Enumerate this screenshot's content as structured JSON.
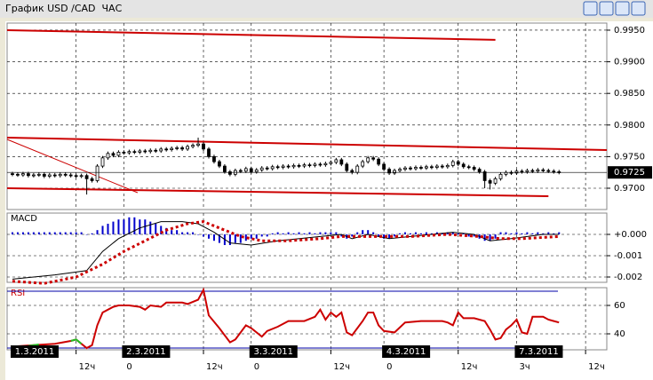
{
  "window": {
    "title": "График USD /CAD  ЧАС"
  },
  "chart_data": [
    {
      "type": "candlestick",
      "xlim": [
        -1,
        112
      ],
      "ylim": [
        0.96663,
        0.99612
      ],
      "grid": true,
      "yticks": [
        {
          "value": 0.995,
          "label": "0.9950"
        },
        {
          "value": 0.99,
          "label": "0.9900"
        },
        {
          "value": 0.985,
          "label": "0.9850"
        },
        {
          "value": 0.98,
          "label": "0.9800"
        },
        {
          "value": 0.975,
          "label": "0.9750"
        },
        {
          "value": 0.97,
          "label": "0.9700"
        }
      ],
      "last": {
        "value": 0.9725,
        "label": "0.9725"
      },
      "open": [
        0.9723,
        0.9722,
        0.9721,
        0.9723,
        0.972,
        0.9721,
        0.9722,
        0.9719,
        0.9721,
        0.972,
        0.9722,
        0.9721,
        0.972,
        0.9719,
        0.972,
        0.9715,
        0.9712,
        0.9735,
        0.9748,
        0.9755,
        0.9752,
        0.9757,
        0.9756,
        0.9758,
        0.9757,
        0.9759,
        0.9758,
        0.976,
        0.9759,
        0.9762,
        0.9761,
        0.9763,
        0.9764,
        0.9762,
        0.9766,
        0.9768,
        0.977,
        0.9762,
        0.975,
        0.9742,
        0.9735,
        0.9726,
        0.9722,
        0.9728,
        0.9727,
        0.9731,
        0.9726,
        0.9729,
        0.9732,
        0.9731,
        0.9734,
        0.9733,
        0.9735,
        0.9734,
        0.9736,
        0.9735,
        0.9737,
        0.9736,
        0.9738,
        0.9737,
        0.9739,
        0.9741,
        0.9745,
        0.9738,
        0.9728,
        0.9725,
        0.9735,
        0.9742,
        0.9748,
        0.9746,
        0.9738,
        0.973,
        0.9724,
        0.9728,
        0.973,
        0.9732,
        0.9731,
        0.9733,
        0.9732,
        0.9734,
        0.9733,
        0.9735,
        0.9734,
        0.9736,
        0.9742,
        0.9738,
        0.9734,
        0.9733,
        0.973,
        0.9726,
        0.9712,
        0.9708,
        0.9715,
        0.9722,
        0.9725,
        0.9724,
        0.9727,
        0.9726,
        0.9728,
        0.9727,
        0.9729,
        0.9728,
        0.9727,
        0.9726
      ],
      "high": [
        0.9726,
        0.9725,
        0.9726,
        0.9726,
        0.9724,
        0.9725,
        0.9725,
        0.9724,
        0.9724,
        0.9725,
        0.9725,
        0.9724,
        0.9723,
        0.9723,
        0.9723,
        0.9718,
        0.9738,
        0.9751,
        0.9758,
        0.9758,
        0.976,
        0.976,
        0.9761,
        0.9761,
        0.9762,
        0.9762,
        0.9763,
        0.9763,
        0.9765,
        0.9765,
        0.9766,
        0.9767,
        0.9767,
        0.9769,
        0.9771,
        0.978,
        0.9773,
        0.9765,
        0.9753,
        0.9745,
        0.9738,
        0.9729,
        0.9731,
        0.9731,
        0.9734,
        0.9734,
        0.9732,
        0.9735,
        0.9735,
        0.9737,
        0.9737,
        0.9738,
        0.9738,
        0.9739,
        0.9739,
        0.974,
        0.974,
        0.9741,
        0.9741,
        0.9742,
        0.9744,
        0.9748,
        0.9748,
        0.9741,
        0.9731,
        0.9738,
        0.9745,
        0.9751,
        0.9751,
        0.9749,
        0.9741,
        0.9733,
        0.9731,
        0.9733,
        0.9735,
        0.9735,
        0.9736,
        0.9736,
        0.9737,
        0.9737,
        0.9738,
        0.9738,
        0.9739,
        0.9745,
        0.9745,
        0.9741,
        0.9737,
        0.9736,
        0.9733,
        0.9729,
        0.9715,
        0.9718,
        0.9725,
        0.9728,
        0.9728,
        0.973,
        0.973,
        0.9731,
        0.9731,
        0.9732,
        0.9732,
        0.9731,
        0.973,
        0.9729
      ],
      "low": [
        0.9719,
        0.9718,
        0.9718,
        0.9717,
        0.9717,
        0.9718,
        0.9716,
        0.9716,
        0.9717,
        0.9717,
        0.9718,
        0.9717,
        0.9716,
        0.9716,
        0.969,
        0.9709,
        0.9709,
        0.9732,
        0.9745,
        0.9749,
        0.9749,
        0.9753,
        0.9753,
        0.9754,
        0.9754,
        0.9755,
        0.9755,
        0.9756,
        0.9756,
        0.9758,
        0.9758,
        0.976,
        0.9759,
        0.9759,
        0.9763,
        0.9765,
        0.9759,
        0.9747,
        0.9739,
        0.9732,
        0.9723,
        0.9719,
        0.9719,
        0.9724,
        0.9724,
        0.9723,
        0.9723,
        0.9726,
        0.9728,
        0.9728,
        0.973,
        0.973,
        0.9731,
        0.9731,
        0.9732,
        0.9732,
        0.9733,
        0.9733,
        0.9734,
        0.9734,
        0.9736,
        0.9738,
        0.9735,
        0.9725,
        0.9722,
        0.9722,
        0.9732,
        0.9739,
        0.9743,
        0.9735,
        0.9727,
        0.9721,
        0.9721,
        0.9725,
        0.9727,
        0.9728,
        0.9728,
        0.9729,
        0.9729,
        0.973,
        0.973,
        0.9731,
        0.9731,
        0.9733,
        0.9735,
        0.9731,
        0.973,
        0.9727,
        0.9723,
        0.97,
        0.9698,
        0.9705,
        0.9712,
        0.9719,
        0.9721,
        0.9721,
        0.9723,
        0.9723,
        0.9724,
        0.9724,
        0.9725,
        0.9724,
        0.9723,
        0.9722
      ],
      "close": [
        0.9722,
        0.9721,
        0.9723,
        0.972,
        0.9721,
        0.9722,
        0.9719,
        0.9721,
        0.972,
        0.9722,
        0.9721,
        0.972,
        0.9719,
        0.972,
        0.9715,
        0.9712,
        0.9735,
        0.9748,
        0.9755,
        0.9752,
        0.9757,
        0.9756,
        0.9758,
        0.9757,
        0.9759,
        0.9758,
        0.976,
        0.9759,
        0.9762,
        0.9761,
        0.9763,
        0.9764,
        0.9762,
        0.9766,
        0.9768,
        0.977,
        0.9762,
        0.975,
        0.9742,
        0.9735,
        0.9726,
        0.9722,
        0.9728,
        0.9727,
        0.9731,
        0.9726,
        0.9729,
        0.9732,
        0.9731,
        0.9734,
        0.9733,
        0.9735,
        0.9734,
        0.9736,
        0.9735,
        0.9737,
        0.9736,
        0.9738,
        0.9737,
        0.9739,
        0.9741,
        0.9745,
        0.9738,
        0.9728,
        0.9725,
        0.9735,
        0.9742,
        0.9748,
        0.9746,
        0.9738,
        0.973,
        0.9724,
        0.9728,
        0.973,
        0.9732,
        0.9731,
        0.9733,
        0.9732,
        0.9734,
        0.9733,
        0.9735,
        0.9734,
        0.9736,
        0.9742,
        0.9738,
        0.9734,
        0.9733,
        0.973,
        0.9726,
        0.9712,
        0.9708,
        0.9715,
        0.9722,
        0.9725,
        0.9724,
        0.9727,
        0.9726,
        0.9728,
        0.9727,
        0.9729,
        0.9728,
        0.9727,
        0.9726,
        0.9725
      ],
      "lines": [
        {
          "color": "#cc0000",
          "width": 2,
          "x": [
            -1,
            91
          ],
          "values": [
            0.995,
            0.99346
          ]
        },
        {
          "color": "#cc0000",
          "width": 2,
          "x": [
            -1,
            112
          ],
          "values": [
            0.97801,
            0.97604
          ]
        },
        {
          "color": "#cc0000",
          "width": 2,
          "x": [
            -1,
            101
          ],
          "values": [
            0.97,
            0.96874
          ]
        },
        {
          "color": "#cc0000",
          "width": 1,
          "x": [
            -1,
            23.6
          ],
          "values": [
            0.97772,
            0.9693
          ]
        }
      ]
    },
    {
      "type": "macd",
      "title": "MACD",
      "xlim": [
        -1,
        112
      ],
      "ylim": [
        -0.00225,
        0.001
      ],
      "grid": true,
      "yticks": [
        {
          "value": 0,
          "label": "+0.000"
        },
        {
          "value": -0.001,
          "label": "-0.001"
        },
        {
          "value": -0.002,
          "label": "-0.002"
        }
      ],
      "bars": {
        "color": "#0000cc",
        "values": [
          0.0001,
          0.0001,
          0.0001,
          0.0001,
          0.0001,
          0.0001,
          0.0001,
          0.0001,
          0.0001,
          0.0001,
          0.0001,
          0.0001,
          0.0001,
          0.0001,
          0,
          5e-05,
          0.0002,
          0.0004,
          0.0005,
          0.0006,
          0.0007,
          0.0007,
          0.0008,
          0.0008,
          0.0007,
          0.0007,
          0.0006,
          0.0005,
          0.0004,
          0.0003,
          0.0002,
          0.0002,
          0.0001,
          0.0001,
          0.0001,
          0,
          -0.0001,
          -0.0002,
          -0.0003,
          -0.0004,
          -0.0005,
          -0.0005,
          -0.0004,
          -0.0004,
          -0.0003,
          -0.0002,
          -0.0002,
          -0.0001,
          -0.0001,
          5e-05,
          0.0001,
          5e-05,
          0.0001,
          5e-05,
          0.0001,
          5e-05,
          0.0001,
          5e-05,
          0.0001,
          0.0001,
          0.0001,
          0.0001,
          -0.0001,
          -0.0002,
          -0.0001,
          0.0001,
          0.0002,
          0.0002,
          0.0001,
          -0.0001,
          -0.0002,
          -0.0002,
          -0.0001,
          5e-05,
          0.0001,
          5e-05,
          0.0001,
          5e-05,
          0.0001,
          5e-05,
          0.0001,
          5e-05,
          0.0001,
          0.0001,
          5e-05,
          5e-05,
          -0.0001,
          -0.0001,
          -0.0002,
          -0.0003,
          -0.0003,
          -0.0002,
          0.0001,
          0.0001,
          5e-05,
          0.0001,
          5e-05,
          0.0001,
          5e-05,
          0.0001,
          5e-05,
          0.0001,
          5e-05,
          0.0001
        ]
      },
      "series": [
        {
          "color": "#000000",
          "style": "solid",
          "x": [
            0,
            8,
            14,
            17,
            20,
            24,
            28,
            32,
            35,
            38,
            41,
            45,
            50,
            58,
            62,
            64,
            67,
            71,
            75,
            83,
            87,
            90,
            94,
            100,
            103
          ],
          "values": [
            -0.0021,
            -0.0019,
            -0.0017,
            -0.0008,
            -0.0002,
            0.0003,
            0.0006,
            0.0006,
            0.0005,
            0.0001,
            -0.0004,
            -0.0005,
            -0.0003,
            -0.0001,
            0,
            -0.0002,
            0,
            -0.0002,
            -0.0001,
            0.0001,
            0,
            -0.0003,
            -0.0002,
            0,
            0
          ]
        },
        {
          "color": "#cc0000",
          "style": "dotted",
          "x": [
            0,
            6,
            12,
            17,
            21,
            25,
            29,
            33,
            36,
            39,
            43,
            47,
            52,
            58,
            62,
            66,
            70,
            75,
            82,
            88,
            92,
            96,
            103
          ],
          "values": [
            -0.0022,
            -0.0023,
            -0.002,
            -0.0014,
            -0.0008,
            -0.0003,
            0.0002,
            0.0005,
            0.0006,
            0.0003,
            -0.0001,
            -0.0003,
            -0.0003,
            -0.0002,
            -0.0001,
            -0.0001,
            -0.0001,
            -0.0001,
            0,
            -0.0001,
            -0.0002,
            -0.0002,
            -0.0001
          ]
        }
      ]
    },
    {
      "type": "line",
      "title": "RSI",
      "xlim": [
        -1,
        112
      ],
      "ylim": [
        28.75,
        72.5
      ],
      "grid": true,
      "yticks": [
        60,
        40
      ],
      "levels": [
        70,
        30
      ],
      "level_color": "#0000aa",
      "xticks": [
        {
          "value": 12,
          "label": "12ч"
        },
        {
          "value": 21,
          "label": "0"
        },
        {
          "value": 36,
          "label": "12ч"
        },
        {
          "value": 45,
          "label": "0"
        },
        {
          "value": 60,
          "label": "12ч"
        },
        {
          "value": 70,
          "label": "0"
        },
        {
          "value": 84,
          "label": "12ч"
        },
        {
          "value": 95,
          "label": "3ч"
        },
        {
          "value": 108,
          "label": "12ч"
        }
      ],
      "date_labels": [
        {
          "value": 0,
          "label": "1.3.2011"
        },
        {
          "value": 21,
          "label": "2.3.2011"
        },
        {
          "value": 45,
          "label": "3.3.2011"
        },
        {
          "value": 70,
          "label": "4.3.2011"
        },
        {
          "value": 95,
          "label": "7.3.2011"
        }
      ],
      "series": [
        {
          "color": "#cc0000",
          "x": [
            0,
            4,
            8,
            11,
            12,
            13,
            14,
            15,
            16,
            17,
            19,
            20,
            22,
            24,
            25,
            26,
            28,
            29,
            32,
            33,
            35,
            36,
            37,
            39,
            41,
            42,
            44,
            45,
            47,
            48,
            50,
            52,
            55,
            57,
            58,
            59,
            60,
            61,
            62,
            63,
            64,
            66,
            67,
            68,
            69,
            70,
            72,
            74,
            77,
            81,
            82,
            83,
            84,
            85,
            87,
            89,
            90,
            91,
            92,
            93,
            94,
            95,
            96,
            97,
            98,
            100,
            101,
            102,
            103
          ],
          "values": [
            31,
            32,
            33,
            35,
            36,
            33,
            30,
            32,
            46,
            55,
            59,
            60,
            60,
            59,
            57,
            60,
            59,
            62,
            62,
            61,
            64,
            71,
            53,
            44,
            34,
            36,
            46,
            44,
            38,
            42,
            45,
            49,
            49,
            52,
            57,
            50,
            55,
            52,
            55,
            41,
            39,
            49,
            55,
            55,
            46,
            42,
            41,
            48,
            49,
            49,
            48,
            46,
            55,
            51,
            51,
            49,
            43,
            36,
            37,
            43,
            46,
            50,
            41,
            40,
            52,
            52,
            50,
            49,
            48
          ]
        },
        {
          "color": "#22bb22",
          "x": [
            3,
            4,
            5,
            6,
            11,
            12,
            13
          ],
          "values": [
            31.5,
            32,
            32.5,
            null,
            35,
            36,
            33
          ]
        }
      ]
    }
  ]
}
